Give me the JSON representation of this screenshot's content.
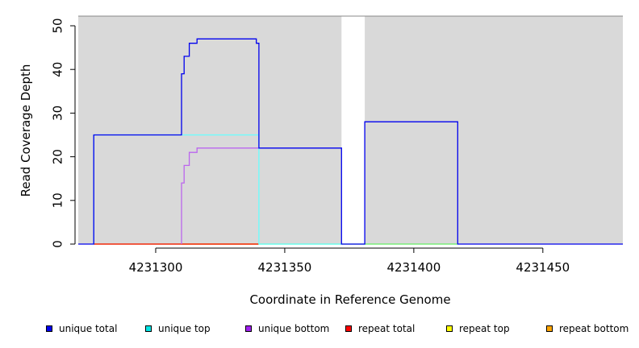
{
  "chart_data": {
    "type": "line",
    "title": "",
    "xlabel": "Coordinate in Reference Genome",
    "ylabel": "Read Coverage Depth",
    "xlim": [
      4231270,
      4231481
    ],
    "ylim": [
      0,
      50
    ],
    "x_ticks": [
      4231300,
      4231350,
      4231400,
      4231450
    ],
    "y_ticks": [
      0,
      10,
      20,
      30,
      40,
      50
    ],
    "grid": false,
    "shaded_regions": [
      {
        "x": [
          4231270,
          4231372
        ],
        "color": "#d9d9d9"
      },
      {
        "x": [
          4231381,
          4231481
        ],
        "color": "#d9d9d9"
      }
    ],
    "series": [
      {
        "name": "unique total",
        "color": "#0000ee",
        "x": [
          4231270,
          4231276,
          4231276,
          4231310,
          4231310,
          4231311,
          4231311,
          4231313,
          4231313,
          4231316,
          4231316,
          4231339,
          4231339,
          4231340,
          4231340,
          4231372,
          4231372,
          4231381,
          4231381,
          4231417,
          4231417,
          4231481
        ],
        "y": [
          0,
          0,
          25,
          25,
          39,
          39,
          43,
          43,
          46,
          46,
          47,
          47,
          46,
          46,
          22,
          22,
          0,
          0,
          28,
          28,
          0,
          0
        ]
      },
      {
        "name": "unique top",
        "color": "#66ffff",
        "x": [
          4231276,
          4231276,
          4231340,
          4231340,
          4231372
        ],
        "y": [
          0,
          25,
          25,
          0,
          0
        ]
      },
      {
        "name": "unique bottom",
        "color": "#bb66ee",
        "x": [
          4231310,
          4231310,
          4231311,
          4231311,
          4231313,
          4231313,
          4231316,
          4231316,
          4231340
        ],
        "y": [
          0,
          14,
          14,
          18,
          18,
          21,
          21,
          22,
          22
        ]
      },
      {
        "name": "repeat total",
        "color": "#ee0000",
        "x": [
          4231276,
          4231340
        ],
        "y": [
          0,
          0
        ]
      },
      {
        "name": "repeat top",
        "color": "#ffff00",
        "x": [
          4231276,
          4231340
        ],
        "y": [
          0,
          0
        ]
      },
      {
        "name": "repeat bottom",
        "color": "#ffa500",
        "x": [
          4231310,
          4231340
        ],
        "y": [
          0,
          0
        ]
      },
      {
        "name": "",
        "color": "#66ee66",
        "x": [
          4231340,
          4231372,
          4231372,
          4231381,
          4231381,
          4231417
        ],
        "y": [
          0,
          0,
          0,
          0,
          0,
          0
        ]
      }
    ],
    "legend": {
      "placement": "bottom",
      "items": [
        {
          "label": "unique total",
          "color": "#0000ee"
        },
        {
          "label": "unique top",
          "color": "#00e5e5"
        },
        {
          "label": "unique bottom",
          "color": "#a020f0"
        },
        {
          "label": "repeat total",
          "color": "#ff0000"
        },
        {
          "label": "repeat top",
          "color": "#ffff00"
        },
        {
          "label": "repeat bottom",
          "color": "#ffa500"
        }
      ]
    }
  }
}
